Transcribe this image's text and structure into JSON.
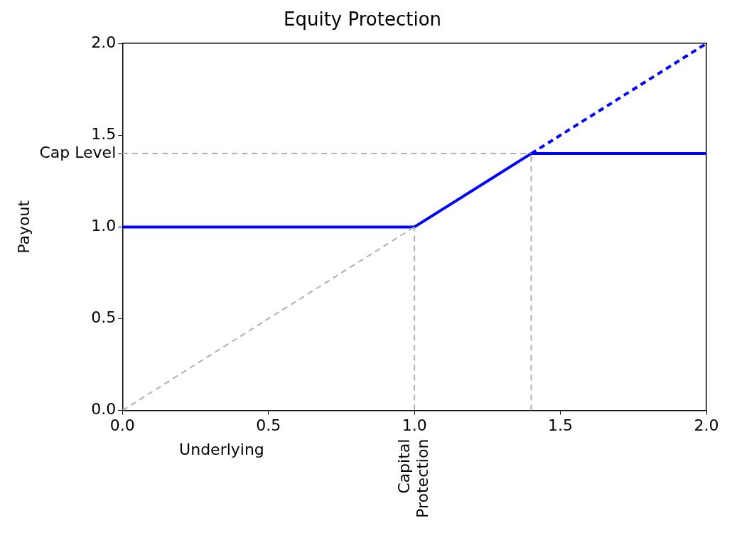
{
  "chart_data": {
    "type": "line",
    "title": "Equity Protection",
    "xlabel": "Underlying",
    "ylabel": "Payout",
    "xlim": [
      0,
      2
    ],
    "ylim": [
      0,
      2
    ],
    "xticks": [
      {
        "value": 0,
        "label": "0.0"
      },
      {
        "value": 0.5,
        "label": "0.5"
      },
      {
        "value": 1,
        "label": "1.0"
      },
      {
        "value": 1.5,
        "label": "1.5"
      },
      {
        "value": 2,
        "label": "2.0"
      }
    ],
    "yticks": [
      {
        "value": 0,
        "label": "0.0"
      },
      {
        "value": 0.5,
        "label": "0.5"
      },
      {
        "value": 1,
        "label": "1.0"
      },
      {
        "value": 1.4,
        "label": "Cap Level"
      },
      {
        "value": 1.5,
        "label": "1.5"
      },
      {
        "value": 2,
        "label": "2.0"
      }
    ],
    "marker": "none",
    "grid": false,
    "legend": false,
    "series": [
      {
        "x": [
          0,
          1.4
        ],
        "values": [
          1.4,
          1.4
        ],
        "color": "#b0b0b0",
        "line_style": "dashed"
      },
      {
        "x": [
          0,
          1
        ],
        "values": [
          0,
          1
        ],
        "color": "#b0b0b0",
        "line_style": "dashed"
      },
      {
        "x": [
          1,
          1
        ],
        "values": [
          0,
          1
        ],
        "color": "#b0b0b0",
        "line_style": "dashed"
      },
      {
        "x": [
          1.4,
          1.4
        ],
        "values": [
          0,
          1.4
        ],
        "color": "#b0b0b0",
        "line_style": "dashed"
      },
      {
        "x": [
          0,
          1,
          1.4,
          2
        ],
        "values": [
          1,
          1,
          1.4,
          1.4
        ],
        "color": "#0000ff",
        "line_style": "solid"
      },
      {
        "x": [
          1.4,
          2
        ],
        "values": [
          1.4,
          2
        ],
        "color": "#0000ff",
        "line_style": "dashed"
      }
    ],
    "annotations": [
      {
        "text": "Capital Protection",
        "x": 1.0,
        "y": 0
      }
    ]
  }
}
